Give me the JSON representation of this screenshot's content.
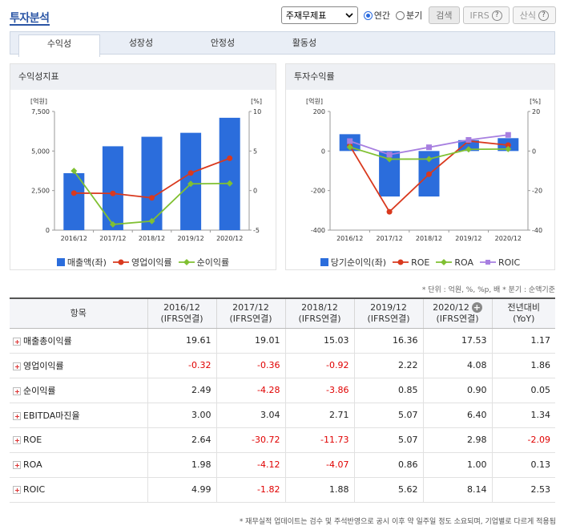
{
  "header": {
    "title": "투자분석",
    "select_value": "주재무제표",
    "radio_annual": "연간",
    "radio_quarter": "분기",
    "search_label": "검색",
    "ifrs_label": "IFRS",
    "formula_label": "산식",
    "help_symbol": "?"
  },
  "tabs": [
    {
      "label": "수익성"
    },
    {
      "label": "성장성"
    },
    {
      "label": "안정성"
    },
    {
      "label": "활동성"
    }
  ],
  "panel1": {
    "title": "수익성지표"
  },
  "panel2": {
    "title": "투자수익률"
  },
  "note": "* 단위 : 억원, %, %p, 배  * 분기 : 순액기준",
  "table": {
    "item_header": "항목",
    "periods": [
      {
        "date": "2016/12",
        "basis": "(IFRS연결)"
      },
      {
        "date": "2017/12",
        "basis": "(IFRS연결)"
      },
      {
        "date": "2018/12",
        "basis": "(IFRS연결)"
      },
      {
        "date": "2019/12",
        "basis": "(IFRS연결)"
      },
      {
        "date": "2020/12",
        "basis": "(IFRS연결)"
      }
    ],
    "yoy_header": "전년대비",
    "yoy_sub": "(YoY)",
    "rows": [
      {
        "name": "매출총이익률",
        "values": [
          "19.61",
          "19.01",
          "15.03",
          "16.36",
          "17.53"
        ],
        "yoy": "1.17"
      },
      {
        "name": "영업이익률",
        "values": [
          "-0.32",
          "-0.36",
          "-0.92",
          "2.22",
          "4.08"
        ],
        "yoy": "1.86"
      },
      {
        "name": "순이익률",
        "values": [
          "2.49",
          "-4.28",
          "-3.86",
          "0.85",
          "0.90"
        ],
        "yoy": "0.05"
      },
      {
        "name": "EBITDA마진율",
        "values": [
          "3.00",
          "3.04",
          "2.71",
          "5.07",
          "6.40"
        ],
        "yoy": "1.34"
      },
      {
        "name": "ROE",
        "values": [
          "2.64",
          "-30.72",
          "-11.73",
          "5.07",
          "2.98"
        ],
        "yoy": "-2.09"
      },
      {
        "name": "ROA",
        "values": [
          "1.98",
          "-4.12",
          "-4.07",
          "0.86",
          "1.00"
        ],
        "yoy": "0.13"
      },
      {
        "name": "ROIC",
        "values": [
          "4.99",
          "-1.82",
          "1.88",
          "5.62",
          "8.14"
        ],
        "yoy": "2.53"
      }
    ]
  },
  "footer": "* 재무실적 업데이트는 검수 및 주석반영으로 공시 이후 약 일주일 정도 소요되며, 기업별로 다르게 적용됨",
  "chart_data": [
    {
      "type": "bar",
      "categories": [
        "2016/12",
        "2017/12",
        "2018/12",
        "2019/12",
        "2020/12"
      ],
      "left_unit": "[억원]",
      "right_unit": "[%]",
      "left_ticks": [
        "7,500",
        "5,000",
        "2,500",
        "0"
      ],
      "right_ticks": [
        "10",
        "5",
        "0",
        "-5"
      ],
      "ylim_left": [
        0,
        7500
      ],
      "ylim_right": [
        -5,
        10
      ],
      "bars": {
        "name": "매출액(좌)",
        "color": "#2b6ddc",
        "values": [
          3600,
          5300,
          5900,
          6150,
          7100
        ]
      },
      "lines": [
        {
          "name": "영업이익률",
          "color": "#d9391e",
          "values": [
            -0.32,
            -0.36,
            -0.92,
            2.22,
            4.08
          ]
        },
        {
          "name": "순이익률",
          "color": "#80c032",
          "values": [
            2.49,
            -4.28,
            -3.86,
            0.85,
            0.9
          ]
        }
      ]
    },
    {
      "type": "bar",
      "categories": [
        "2016/12",
        "2017/12",
        "2018/12",
        "2019/12",
        "2020/12"
      ],
      "left_unit": "[억원]",
      "right_unit": "[%]",
      "left_ticks": [
        "200",
        "0",
        "-200",
        "-400"
      ],
      "right_ticks": [
        "20",
        "0",
        "-20",
        "-40"
      ],
      "ylim_left": [
        -400,
        200
      ],
      "ylim_right": [
        -40,
        20
      ],
      "bars": {
        "name": "당기순이익(좌)",
        "color": "#2b6ddc",
        "values": [
          85,
          -230,
          -230,
          55,
          65
        ]
      },
      "lines": [
        {
          "name": "ROE",
          "color": "#d9391e",
          "values": [
            2.64,
            -30.72,
            -11.73,
            5.07,
            2.98
          ]
        },
        {
          "name": "ROA",
          "color": "#80c032",
          "values": [
            1.98,
            -4.12,
            -4.07,
            0.86,
            1.0
          ]
        },
        {
          "name": "ROIC",
          "color": "#a77fe0",
          "values": [
            4.99,
            -1.82,
            1.88,
            5.62,
            8.14
          ]
        }
      ]
    }
  ]
}
